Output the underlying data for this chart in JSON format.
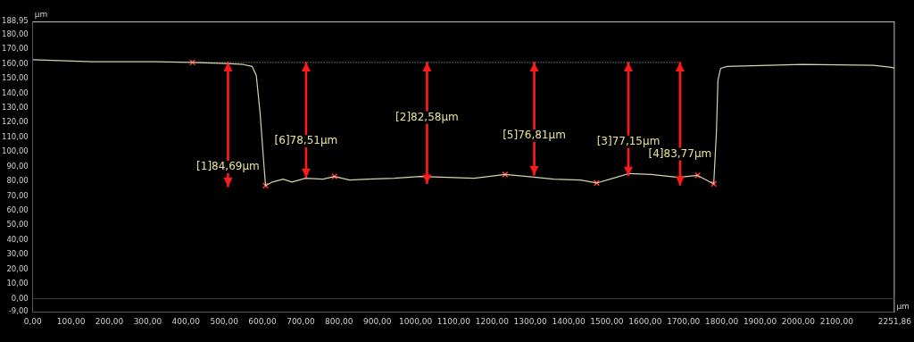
{
  "chart_data": {
    "type": "line",
    "xlabel": "μm",
    "ylabel": "μm",
    "xlim": [
      0,
      2251.86
    ],
    "ylim": [
      -9,
      188.95
    ],
    "xticks": [
      {
        "value": 0,
        "label": "0,00"
      },
      {
        "value": 100,
        "label": "100,00"
      },
      {
        "value": 200,
        "label": "200,00"
      },
      {
        "value": 300,
        "label": "300,00"
      },
      {
        "value": 400,
        "label": "400,00"
      },
      {
        "value": 500,
        "label": "500,00"
      },
      {
        "value": 600,
        "label": "600,00"
      },
      {
        "value": 700,
        "label": "700,00"
      },
      {
        "value": 800,
        "label": "800,00"
      },
      {
        "value": 900,
        "label": "900,00"
      },
      {
        "value": 1000,
        "label": "1000,00"
      },
      {
        "value": 1100,
        "label": "1100,00"
      },
      {
        "value": 1200,
        "label": "1200,00"
      },
      {
        "value": 1300,
        "label": "1300,00"
      },
      {
        "value": 1400,
        "label": "1400,00"
      },
      {
        "value": 1500,
        "label": "1500,00"
      },
      {
        "value": 1600,
        "label": "1600,00"
      },
      {
        "value": 1700,
        "label": "1700,00"
      },
      {
        "value": 1800,
        "label": "1800,00"
      },
      {
        "value": 1900,
        "label": "1900,00"
      },
      {
        "value": 2000,
        "label": "2000,00"
      },
      {
        "value": 2100,
        "label": "2100,00"
      },
      {
        "value": 2251.86,
        "label": "2251,86"
      }
    ],
    "yticks": [
      {
        "value": -9,
        "label": "-9,00"
      },
      {
        "value": 0,
        "label": "0,00"
      },
      {
        "value": 10,
        "label": "10,00"
      },
      {
        "value": 20,
        "label": "20,00"
      },
      {
        "value": 30,
        "label": "30,00"
      },
      {
        "value": 40,
        "label": "40,00"
      },
      {
        "value": 50,
        "label": "50,00"
      },
      {
        "value": 60,
        "label": "60,00"
      },
      {
        "value": 70,
        "label": "70,00"
      },
      {
        "value": 80,
        "label": "80,00"
      },
      {
        "value": 90,
        "label": "90,00"
      },
      {
        "value": 100,
        "label": "100,00"
      },
      {
        "value": 110,
        "label": "110,00"
      },
      {
        "value": 120,
        "label": "120,00"
      },
      {
        "value": 130,
        "label": "130,00"
      },
      {
        "value": 140,
        "label": "140,00"
      },
      {
        "value": 150,
        "label": "150,00"
      },
      {
        "value": 160,
        "label": "160,00"
      },
      {
        "value": 170,
        "label": "170,00"
      },
      {
        "value": 180,
        "label": "180,00"
      },
      {
        "value": 188.95,
        "label": "188,95"
      }
    ],
    "grid": false,
    "legend": false,
    "series": [
      {
        "color": "#d8d4a6",
        "marker": "none",
        "line_style": "solid",
        "x": [
          0,
          155,
          318,
          417,
          503,
          550,
          573,
          584,
          594,
          603,
          608,
          626,
          654,
          677,
          712,
          758,
          788,
          828,
          874,
          944,
          1013,
          1083,
          1153,
          1234,
          1292,
          1361,
          1431,
          1473,
          1524,
          1558,
          1616,
          1686,
          1737,
          1779,
          1786,
          1790,
          1797,
          1814,
          2011,
          2196,
          2243,
          2251.86
        ],
        "values": [
          162.8,
          161.5,
          161.5,
          161,
          160.3,
          159.6,
          158.3,
          152,
          126,
          94,
          77,
          79.5,
          81.4,
          79.5,
          82,
          81.4,
          83.3,
          80.8,
          81.4,
          82,
          83.3,
          82.7,
          82,
          84.6,
          83.3,
          81.4,
          80.8,
          78.8,
          82.7,
          85.3,
          84.6,
          82.7,
          84,
          78.2,
          113,
          148.7,
          157,
          158.3,
          159.6,
          159,
          157.7,
          157
        ]
      },
      {
        "type": "line",
        "color": "#9a9a9a",
        "marker": "none",
        "line_style": "dotted",
        "x": [
          417,
          1691
        ],
        "values": [
          161,
          161
        ]
      },
      {
        "type": "scatter",
        "color": "#ff3b30",
        "marker": "cross",
        "x": [
          417,
          608,
          788,
          1234,
          1473,
          1737,
          1779
        ],
        "values": [
          161,
          77,
          83.3,
          84.6,
          78.8,
          84,
          78.2
        ]
      },
      {
        "type": "bar",
        "color": "#ff1a1a",
        "x": [
          510,
          714,
          1030,
          1310,
          1556,
          1691
        ],
        "base": [
          76.31,
          82.49,
          78.42,
          84.19,
          83.85,
          77.23
        ],
        "values": [
          84.69,
          78.51,
          82.58,
          76.81,
          77.15,
          83.77
        ],
        "value_labels": [
          "[1]84,69μm",
          "[6]78,51μm",
          "[2]82,58μm",
          "[5]76,81μm",
          "[3]77,15μm",
          "[4]83,77μm"
        ]
      }
    ],
    "ref_lines": [
      {
        "axis": "y",
        "value": 0,
        "color": "#3a3a3a",
        "line_style": "solid"
      }
    ]
  }
}
